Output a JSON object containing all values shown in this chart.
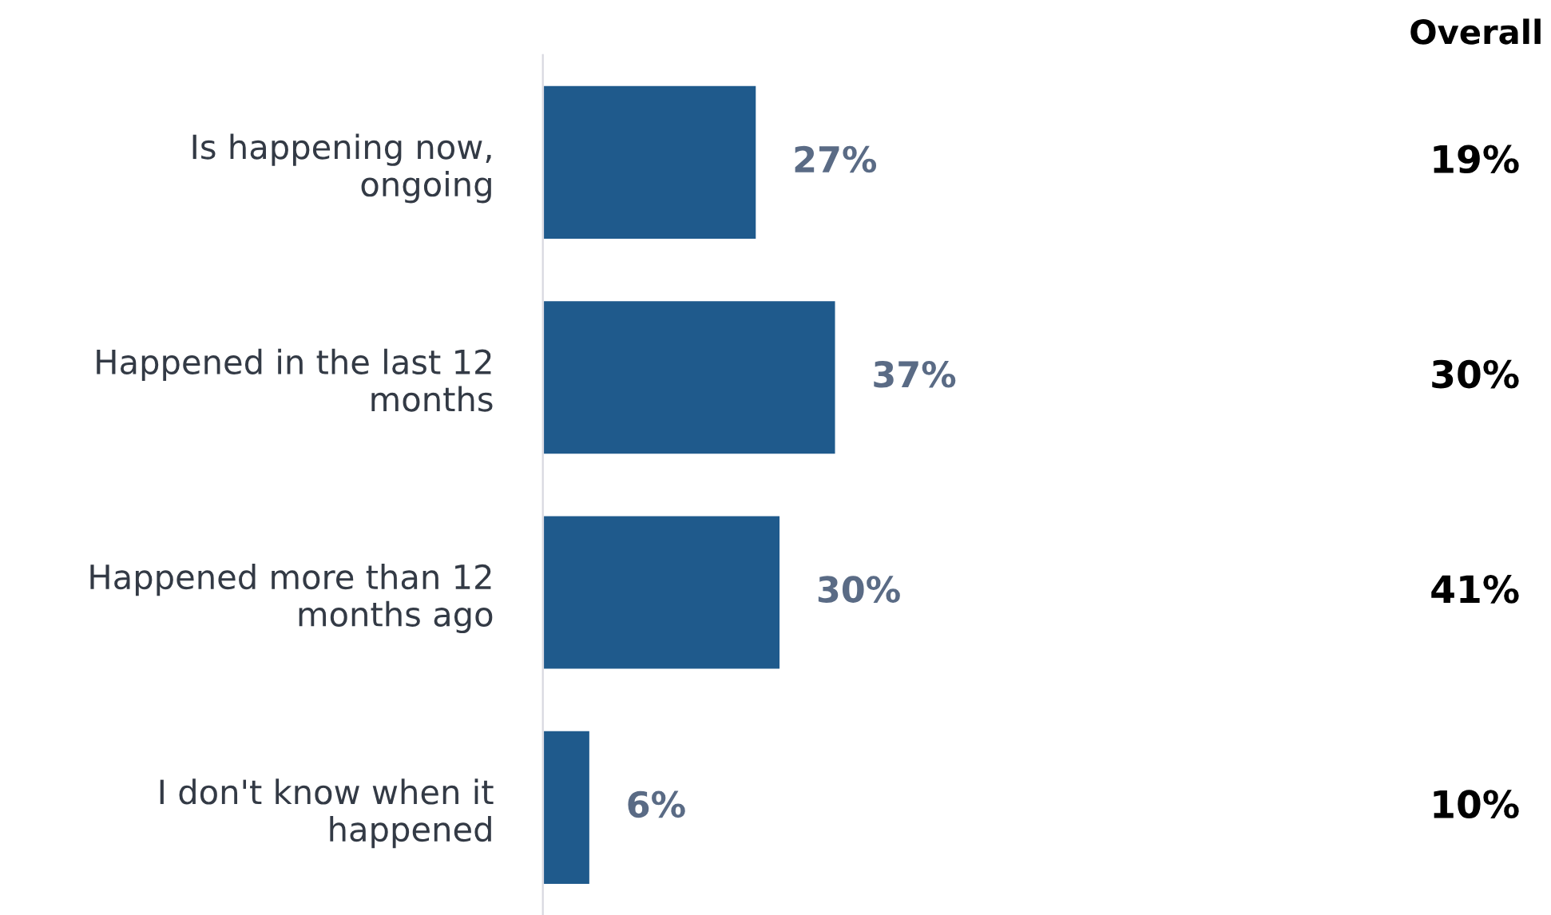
{
  "chart_data": {
    "type": "bar",
    "orientation": "horizontal",
    "categories": [
      "Is happening now,\nongoing",
      "Happened in the last 12\nmonths",
      "Happened more than 12\nmonths ago",
      "I don't know when it\nhappened"
    ],
    "values": [
      27,
      37,
      30,
      6
    ],
    "value_labels": [
      "27%",
      "37%",
      "30%",
      "6%"
    ],
    "color": "#1f5a8c",
    "annotations": [
      "Overall",
      "19%",
      "30%",
      "41%",
      "10%"
    ],
    "grid": false,
    "legend": false
  }
}
